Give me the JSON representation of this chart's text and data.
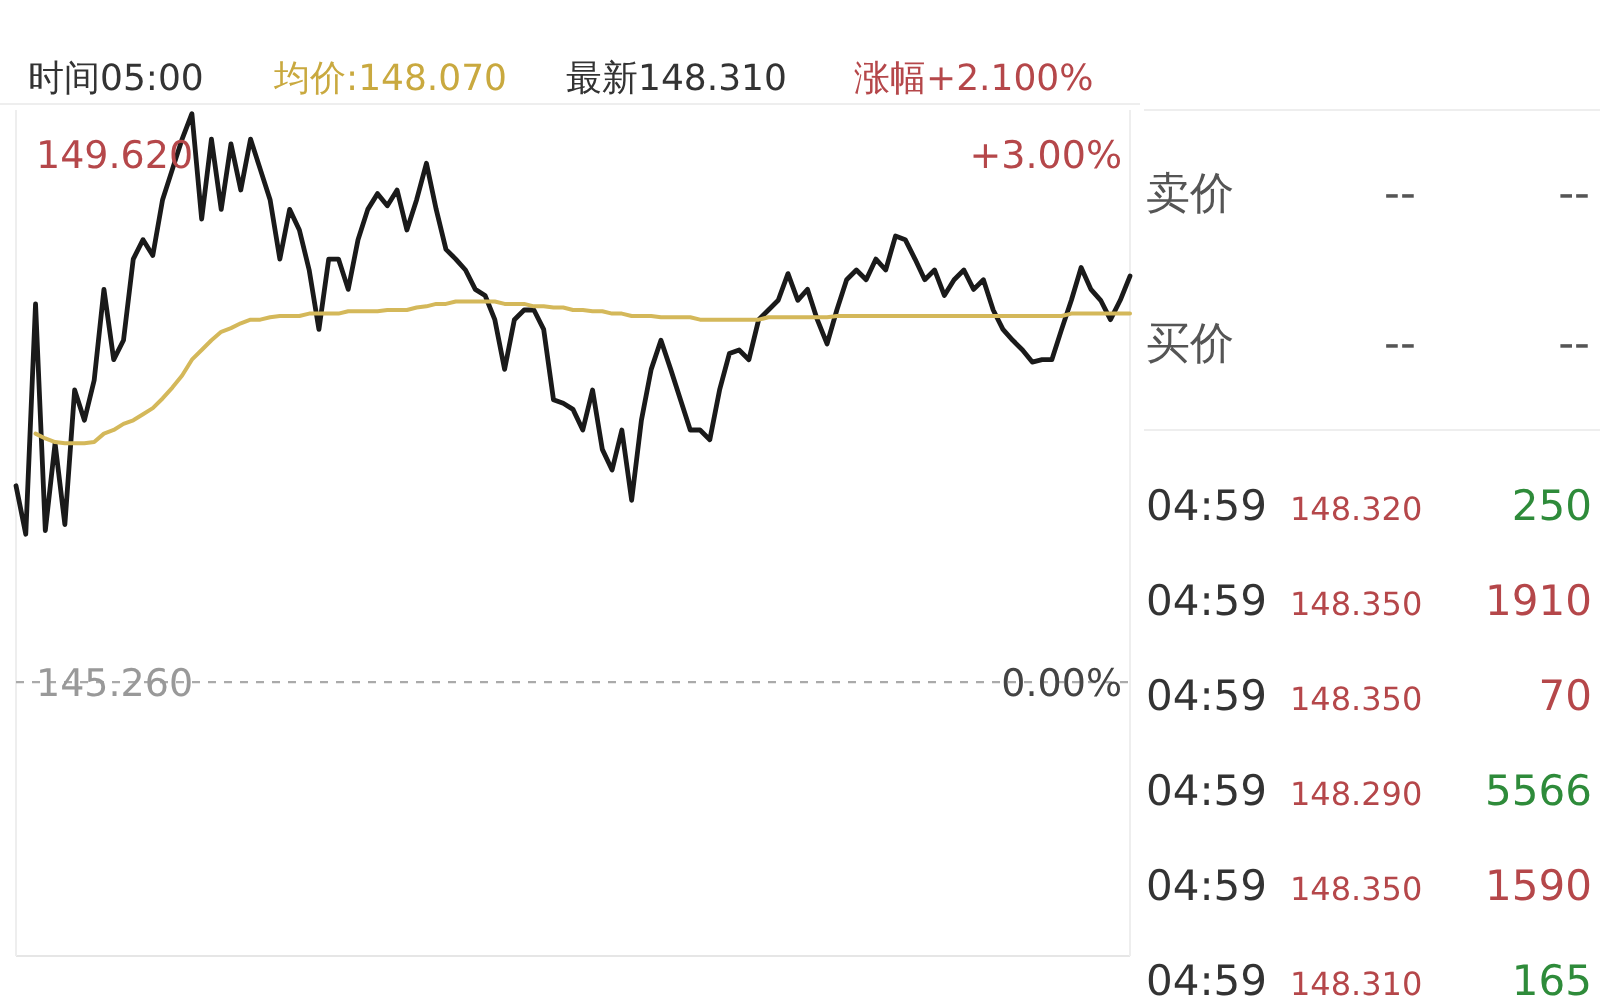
{
  "chart_data": [
    {
      "type": "line",
      "annotations": [
        "时间05:00",
        "均价:148.070",
        "最新148.310",
        "涨幅+2.100%"
      ],
      "categories": [
        null,
        null,
        null,
        null,
        null,
        null,
        null,
        null,
        null,
        null,
        null,
        null,
        null,
        null,
        null,
        null,
        null,
        null,
        null,
        null,
        null,
        null,
        null,
        null,
        null,
        null,
        null,
        null,
        null,
        null,
        null,
        null,
        null,
        null,
        null,
        null,
        null,
        null,
        null,
        null,
        null,
        null,
        null,
        null,
        null,
        null,
        null,
        null,
        null,
        null,
        null,
        null,
        null,
        null,
        null,
        null,
        null,
        null,
        null,
        null,
        null,
        null,
        null,
        null,
        null,
        null,
        null,
        null,
        null,
        null,
        null,
        null,
        null,
        null,
        null,
        null,
        null,
        null,
        null,
        null,
        null,
        null,
        null,
        null,
        null,
        null,
        null,
        null,
        null,
        null,
        null,
        null,
        null,
        null,
        null,
        null,
        null,
        null,
        null,
        null,
        null,
        null,
        null,
        null,
        null,
        null,
        null,
        null,
        null,
        null,
        null,
        null,
        null,
        null,
        null
      ],
      "series": [
        {
          "color": "#1a1a1a",
          "values": [
            146.88,
            146.48,
            148.38,
            146.51,
            147.23,
            146.56,
            147.67,
            147.42,
            147.75,
            148.5,
            147.92,
            148.08,
            148.75,
            148.91,
            148.78,
            149.24,
            149.49,
            149.74,
            149.95,
            149.08,
            149.74,
            149.16,
            149.7,
            149.32,
            149.74,
            149.49,
            149.24,
            148.75,
            149.16,
            148.99,
            148.66,
            148.17,
            148.75,
            148.75,
            148.5,
            148.91,
            149.16,
            149.29,
            149.19,
            149.32,
            148.99,
            149.24,
            149.54,
            149.16,
            148.83,
            148.75,
            148.66,
            148.5,
            148.45,
            148.25,
            147.84,
            148.25,
            148.33,
            148.33,
            148.17,
            147.59,
            147.56,
            147.51,
            147.34,
            147.67,
            147.18,
            147.01,
            147.34,
            146.76,
            147.42,
            147.84,
            148.08,
            147.84,
            147.59,
            147.34,
            147.34,
            147.26,
            147.67,
            147.97,
            148.0,
            147.92,
            148.25,
            148.33,
            148.41,
            148.63,
            148.41,
            148.5,
            148.25,
            148.05,
            148.33,
            148.58,
            148.66,
            148.58,
            148.75,
            148.66,
            148.94,
            148.91,
            148.75,
            148.58,
            148.66,
            148.45,
            148.58,
            148.66,
            148.5,
            148.58,
            148.33,
            148.17,
            148.08,
            148.0,
            147.9,
            147.92,
            147.92,
            148.17,
            148.41,
            148.68,
            148.5,
            148.41,
            148.25,
            148.41,
            148.61
          ]
        },
        {
          "color": "#d4b85a",
          "values": [
            null,
            null,
            147.31,
            147.27,
            147.24,
            147.23,
            147.23,
            147.23,
            147.24,
            147.31,
            147.34,
            147.39,
            147.42,
            147.47,
            147.52,
            147.6,
            147.69,
            147.79,
            147.92,
            148.0,
            148.08,
            148.15,
            148.18,
            148.22,
            148.25,
            148.25,
            148.27,
            148.28,
            148.28,
            148.28,
            148.3,
            148.3,
            148.3,
            148.3,
            148.32,
            148.32,
            148.32,
            148.32,
            148.33,
            148.33,
            148.33,
            148.35,
            148.36,
            148.38,
            148.38,
            148.4,
            148.4,
            148.4,
            148.4,
            148.4,
            148.38,
            148.38,
            148.38,
            148.36,
            148.36,
            148.35,
            148.35,
            148.33,
            148.33,
            148.32,
            148.32,
            148.3,
            148.3,
            148.28,
            148.28,
            148.28,
            148.27,
            148.27,
            148.27,
            148.27,
            148.25,
            148.25,
            148.25,
            148.25,
            148.25,
            148.25,
            148.25,
            148.27,
            148.27,
            148.27,
            148.27,
            148.27,
            148.27,
            148.27,
            148.28,
            148.28,
            148.28,
            148.28,
            148.28,
            148.28,
            148.28,
            148.28,
            148.28,
            148.28,
            148.28,
            148.28,
            148.28,
            148.28,
            148.28,
            148.28,
            148.28,
            148.28,
            148.28,
            148.28,
            148.28,
            148.28,
            148.28,
            148.28,
            148.3,
            148.3,
            148.3,
            148.3,
            148.3,
            148.3,
            148.3
          ]
        }
      ],
      "ylim": [
        143.0,
        149.98
      ],
      "yticks": [
        {
          "value": 149.62,
          "label": "149.620"
        },
        {
          "value": 145.26,
          "label": "145.260"
        }
      ],
      "y2lim": [
        -1.56,
        3.25
      ],
      "y2ticks": [
        {
          "value": 3.0,
          "label": "+3.00%"
        },
        {
          "value": 0,
          "label": "0.00%"
        }
      ],
      "ref_lines": [
        {
          "axis": "y",
          "value": 145.26,
          "color": "#aaaaaa",
          "line_style": "dashed"
        }
      ]
    },
    {
      "type": "other",
      "annotations": [
        "卖价",
        "--",
        "--",
        "买价",
        "--",
        "--",
        "04:59",
        "148.320",
        "250",
        "04:59",
        "148.350",
        "1910",
        "04:59",
        "148.350",
        "70",
        "04:59",
        "148.290",
        "5566",
        "04:59",
        "148.350",
        "1590",
        "04:59",
        "148.310",
        "165"
      ]
    }
  ]
}
